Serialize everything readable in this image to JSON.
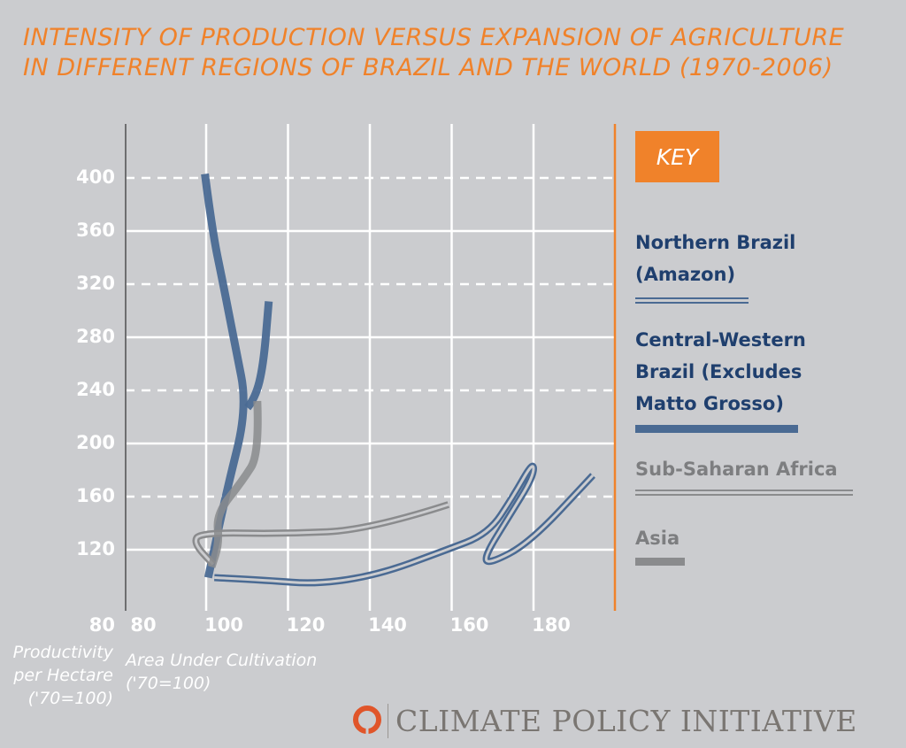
{
  "chart_data": {
    "type": "line",
    "title": "INTENSITY OF PRODUCTION VERSUS EXPANSION OF AGRICULTURE\nIN DIFFERENT REGIONS OF BRAZIL AND THE WORLD (1970-2006)",
    "xlabel": "Area Under Cultivation\n('70=100)",
    "ylabel": "Productivity\nper Hectare\n('70=100)",
    "xlim": [
      80,
      200
    ],
    "ylim": [
      80,
      420
    ],
    "x_ticks": [
      80,
      100,
      120,
      140,
      160,
      180
    ],
    "y_ticks": [
      400,
      360,
      320,
      280,
      240,
      200,
      160,
      120
    ],
    "y_tick_80": 80,
    "grid": true,
    "legend_title": "KEY",
    "legend_placement": "right",
    "series": [
      {
        "name": "Northern Brazil\n(Amazon)",
        "style": "double",
        "color": "#4a6a93",
        "segments": [
          [
            [
              102,
              99
            ],
            [
              115,
              97
            ],
            [
              127,
              94
            ],
            [
              142,
              101
            ],
            [
              158,
              119
            ],
            [
              169,
              132
            ],
            [
              175,
              160
            ],
            [
              180,
              187
            ],
            [
              180,
              175
            ],
            [
              174,
              145
            ],
            [
              168,
              115
            ],
            [
              169,
              109
            ],
            [
              179,
              125
            ],
            [
              194.5,
              176
            ]
          ]
        ]
      },
      {
        "name": "Central-Western\nBrazil (Excludes\nMatto Grosso)",
        "style": "thick",
        "color": "#4a6a93",
        "segments": [
          [
            [
              99.7,
              403
            ],
            [
              101.5,
              360
            ],
            [
              104.1,
              321
            ],
            [
              107,
              275
            ],
            [
              110.1,
              227
            ],
            [
              104.9,
              163
            ],
            [
              100.5,
              99
            ]
          ],
          [
            [
              110.1,
              227
            ],
            [
              112,
              234
            ],
            [
              114,
              259
            ],
            [
              115.3,
              307
            ]
          ]
        ]
      },
      {
        "name": "Sub-Saharan Africa",
        "style": "double",
        "color": "#8a8b8d",
        "segments": [
          [
            [
              159.2,
              154
            ],
            [
              140,
              135
            ],
            [
              119.3,
              132
            ],
            [
              98.5,
              133
            ],
            [
              96.9,
              125
            ],
            [
              101.7,
              109
            ]
          ]
        ]
      },
      {
        "name": "Asia",
        "style": "thick",
        "color": "#8a8b8d",
        "segments": [
          [
            [
              112.5,
              232
            ],
            [
              113,
              192
            ],
            [
              108.9,
              172
            ],
            [
              102.5,
              147
            ],
            [
              103.2,
              125
            ],
            [
              101.3,
              107
            ]
          ]
        ]
      }
    ]
  },
  "colors": {
    "background": "#cbcccf",
    "accent": "#f0822a",
    "legend_text_blue": "#1f3f6e",
    "legend_text_gray": "#7d7e80"
  },
  "logo": {
    "text": "CLIMATE POLICY INITIATIVE"
  }
}
